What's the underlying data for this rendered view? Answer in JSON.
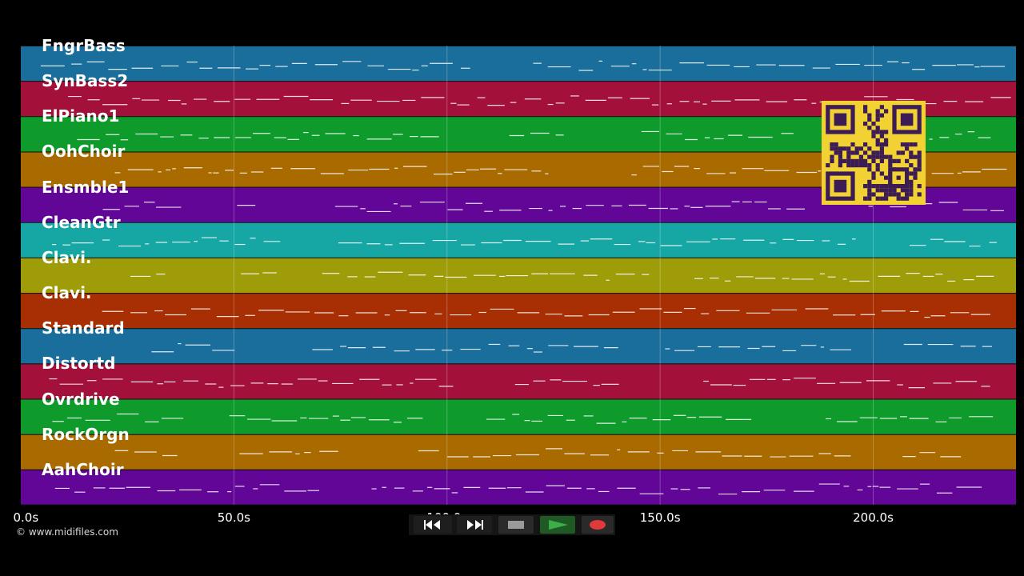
{
  "tracks": [
    {
      "name": "FngrBass",
      "color": "#1a6e9c"
    },
    {
      "name": "SynBass2",
      "color": "#a3113a"
    },
    {
      "name": "ElPiano1",
      "color": "#0f9b2c"
    },
    {
      "name": "OohChoir",
      "color": "#a96a00"
    },
    {
      "name": "Ensmble1",
      "color": "#610696"
    },
    {
      "name": "CleanGtr",
      "color": "#16a6a4"
    },
    {
      "name": "Clavi.",
      "color": "#9f9c0a"
    },
    {
      "name": "Clavi.",
      "color": "#a72f03"
    },
    {
      "name": "Standard",
      "color": "#1a6e9c"
    },
    {
      "name": "Distortd",
      "color": "#a3113a"
    },
    {
      "name": "Ovrdrive",
      "color": "#0f9b2c"
    },
    {
      "name": "RockOrgn",
      "color": "#a96a00"
    },
    {
      "name": "AahChoir",
      "color": "#610696"
    }
  ],
  "timeline": {
    "unit": "s",
    "max_seconds": 233.5,
    "ticks": [
      "0.0s",
      "50.0s",
      "100.0s",
      "150.0s",
      "200.0s"
    ],
    "tick_values": [
      0,
      50,
      100,
      150,
      200
    ]
  },
  "copyright": "© www.midifiles.com",
  "qr_code": {
    "fg": "#f2d233",
    "bg": "#3b1c55",
    "description": "qr-code"
  },
  "transport": {
    "rewind_icon": "rewind-icon",
    "fast_forward_icon": "fast-forward-icon",
    "stop_icon": "stop-icon",
    "play_icon": "play-icon",
    "record_icon": "record-icon",
    "play_color": "#3fae4a",
    "record_color": "#e03a3a"
  }
}
